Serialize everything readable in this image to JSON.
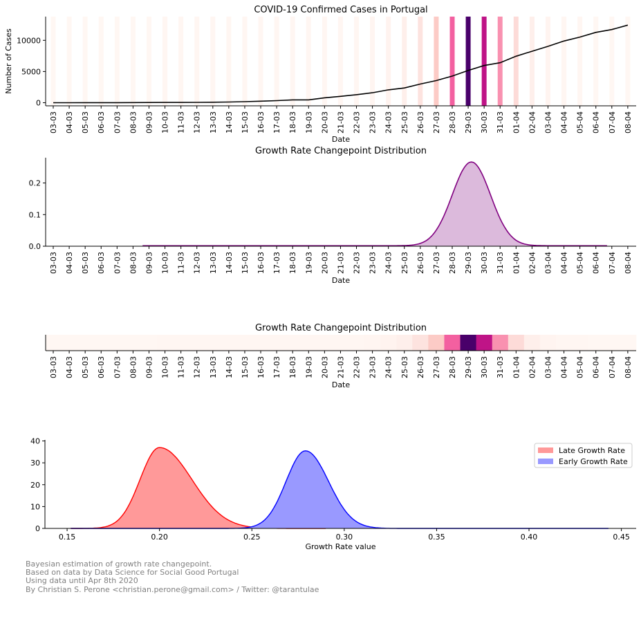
{
  "chart_data": [
    {
      "type": "bar+line",
      "title": "COVID-19 Confirmed Cases in Portugal",
      "xlabel": "Date",
      "ylabel": "Number of Cases",
      "ylim": [
        -500,
        13800
      ],
      "yticks": [
        0,
        5000,
        10000
      ],
      "categories": [
        "03-03",
        "04-03",
        "05-03",
        "06-03",
        "07-03",
        "08-03",
        "09-03",
        "10-03",
        "11-03",
        "12-03",
        "13-03",
        "14-03",
        "15-03",
        "16-03",
        "17-03",
        "18-03",
        "19-03",
        "20-03",
        "21-03",
        "22-03",
        "23-03",
        "24-03",
        "25-03",
        "26-03",
        "27-03",
        "28-03",
        "29-03",
        "30-03",
        "31-03",
        "01-04",
        "02-04",
        "03-04",
        "04-04",
        "05-04",
        "06-04",
        "07-04",
        "08-04"
      ],
      "series": [
        {
          "values": [
            2,
            4,
            6,
            9,
            13,
            21,
            30,
            39,
            41,
            59,
            78,
            112,
            169,
            245,
            331,
            448,
            448,
            785,
            1020,
            1280,
            1600,
            2060,
            2362,
            2995,
            3544,
            4268,
            5170,
            5962,
            6408,
            7443,
            8251,
            9034,
            9886,
            10524,
            11278,
            11730,
            12442
          ]
        }
      ],
      "changepoint_probability": [
        0.0002,
        0.0002,
        0.0002,
        0.0002,
        0.0002,
        0.0002,
        0.0005,
        0.001,
        0.0012,
        0.0015,
        0.002,
        0.002,
        0.002,
        0.002,
        0.002,
        0.0015,
        0.0015,
        0.0015,
        0.0015,
        0.002,
        0.003,
        0.006,
        0.012,
        0.03,
        0.06,
        0.14,
        0.27,
        0.19,
        0.11,
        0.04,
        0.012,
        0.004,
        0.002,
        0.001,
        0.0005,
        0.0003,
        0.0002
      ]
    },
    {
      "type": "area",
      "title": "Growth Rate Changepoint Distribution",
      "xlabel": "Date",
      "ylim": [
        0,
        0.28
      ],
      "yticks": [
        0.0,
        0.1,
        0.2
      ],
      "ytick_labels": [
        "0.0",
        "0.1",
        "0.2"
      ],
      "categories": [
        "03-03",
        "04-03",
        "05-03",
        "06-03",
        "07-03",
        "08-03",
        "09-03",
        "10-03",
        "11-03",
        "12-03",
        "13-03",
        "14-03",
        "15-03",
        "16-03",
        "17-03",
        "18-03",
        "19-03",
        "20-03",
        "21-03",
        "22-03",
        "23-03",
        "24-03",
        "25-03",
        "26-03",
        "27-03",
        "28-03",
        "29-03",
        "30-03",
        "31-03",
        "01-04",
        "02-04",
        "03-04",
        "04-04",
        "05-04",
        "06-04",
        "07-04",
        "08-04"
      ],
      "x_start": 5.6,
      "x_end": 34.7,
      "mean": 26.2,
      "peak": 0.265,
      "sigma": 1.2,
      "line_color": "#800080",
      "fill_color": "#dcbadc"
    },
    {
      "type": "heatmap",
      "title": "Growth Rate Changepoint Distribution",
      "xlabel": "Date",
      "categories": [
        "03-03",
        "04-03",
        "05-03",
        "06-03",
        "07-03",
        "08-03",
        "09-03",
        "10-03",
        "11-03",
        "12-03",
        "13-03",
        "14-03",
        "15-03",
        "16-03",
        "17-03",
        "18-03",
        "19-03",
        "20-03",
        "21-03",
        "22-03",
        "23-03",
        "24-03",
        "25-03",
        "26-03",
        "27-03",
        "28-03",
        "29-03",
        "30-03",
        "31-03",
        "01-04",
        "02-04",
        "03-04",
        "04-04",
        "05-04",
        "06-04",
        "07-04",
        "08-04"
      ],
      "values": [
        0.0002,
        0.0002,
        0.0002,
        0.0002,
        0.0002,
        0.0002,
        0.0005,
        0.001,
        0.0012,
        0.0015,
        0.002,
        0.002,
        0.002,
        0.002,
        0.002,
        0.0015,
        0.0015,
        0.0015,
        0.0015,
        0.002,
        0.003,
        0.006,
        0.012,
        0.03,
        0.06,
        0.14,
        0.27,
        0.19,
        0.11,
        0.04,
        0.012,
        0.004,
        0.002,
        0.001,
        0.0005,
        0.0003,
        0.0002
      ]
    },
    {
      "type": "area",
      "xlabel": "Growth Rate value",
      "xlim": [
        0.138,
        0.458
      ],
      "ylim": [
        0,
        40.5
      ],
      "xticks": [
        0.15,
        0.2,
        0.25,
        0.3,
        0.35,
        0.4,
        0.45
      ],
      "xtick_labels": [
        "0.15",
        "0.20",
        "0.25",
        "0.30",
        "0.35",
        "0.40",
        "0.45"
      ],
      "yticks": [
        0,
        10,
        20,
        30,
        40
      ],
      "legend_position": "top-right",
      "series": [
        {
          "name": "Late Growth Rate",
          "mean": 0.2,
          "peak": 37,
          "sigma_left": 0.0105,
          "sigma_right": 0.0175,
          "x_range": [
            0.152,
            0.29
          ],
          "line_color": "#ff0000",
          "fill_color": "#ff9999"
        },
        {
          "name": "Early Growth Rate",
          "mean": 0.279,
          "peak": 35.5,
          "sigma_left": 0.0105,
          "sigma_right": 0.0125,
          "x_range": [
            0.152,
            0.443
          ],
          "line_color": "#0000ff",
          "fill_color": "#9999ff"
        }
      ]
    }
  ],
  "footer": {
    "lines": [
      "Bayesian estimation of growth rate changepoint.",
      "Based on data by Data Science for Social Good Portugal",
      "Using data until Apr 8th 2020",
      "By Christian S. Perone <christian.perone@gmail.com> / Twitter: @tarantulae"
    ]
  }
}
